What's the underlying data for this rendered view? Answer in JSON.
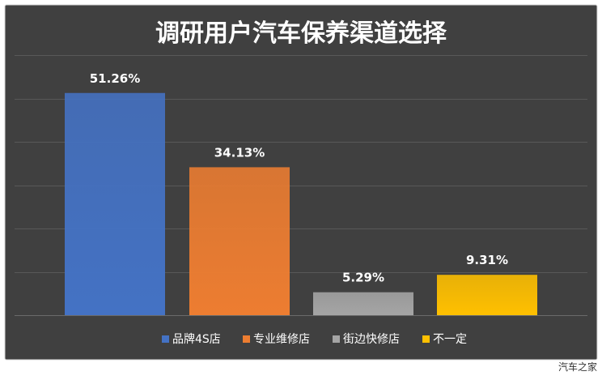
{
  "chart_data": {
    "type": "bar",
    "title": "调研用户汽车保养渠道选择",
    "categories": [
      "品牌4S店",
      "专业维修店",
      "街边快修店",
      "不一定"
    ],
    "values": [
      51.26,
      34.13,
      5.29,
      9.31
    ],
    "value_labels": [
      "51.26%",
      "34.13%",
      "5.29%",
      "9.31%"
    ],
    "colors": [
      "#4472C4",
      "#ED7D31",
      "#A5A5A5",
      "#FFC000"
    ],
    "ylim": [
      0,
      60
    ],
    "gridlines": true,
    "legend": "bottom",
    "background": "#404040"
  },
  "watermark": "汽车之家"
}
